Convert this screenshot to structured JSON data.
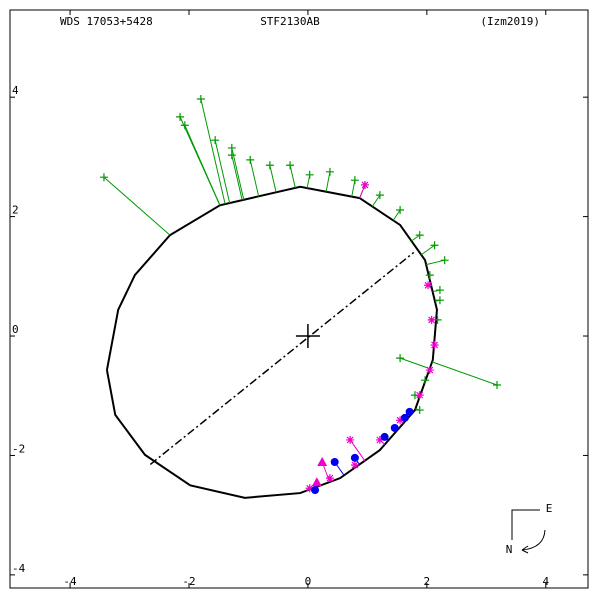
{
  "chart_data": {
    "type": "orbit",
    "title_left": "WDS 17053+5428",
    "title": "STF2130AB",
    "title_right": "(Izm2019)",
    "compass": {
      "east": "E",
      "north": "N"
    },
    "xlim": [
      -5.01,
      4.71
    ],
    "ylim": [
      -4.22,
      5.46
    ],
    "xticks": [
      -4,
      -2,
      0,
      2,
      4
    ],
    "yticks": [
      -4,
      -2,
      0,
      2,
      4
    ],
    "primary": {
      "x": 0,
      "y": 0
    },
    "orbit": {
      "color": "#000000",
      "x": [
        -3.38,
        -3.19,
        -2.91,
        -2.32,
        -1.48,
        -0.13,
        0.87,
        1.55,
        1.97,
        2.17,
        2.1,
        1.8,
        1.21,
        0.54,
        -0.13,
        -1.06,
        -1.98,
        -2.74,
        -3.24,
        -3.38
      ],
      "y": [
        -0.57,
        0.44,
        1.02,
        1.69,
        2.19,
        2.5,
        2.31,
        1.86,
        1.27,
        0.44,
        -0.4,
        -1.24,
        -1.91,
        -2.38,
        -2.63,
        -2.71,
        -2.5,
        -1.99,
        -1.32,
        -0.57
      ]
    },
    "node_line": {
      "color": "#000000",
      "x": [
        -2.65,
        1.78
      ],
      "y": [
        -2.15,
        1.4
      ]
    },
    "residuals": true,
    "series": [
      {
        "marker": "plus",
        "color": "#009900",
        "x": [
          -3.43,
          -2.15,
          -1.8,
          -2.07,
          -1.28,
          -0.97,
          -0.64,
          -0.3,
          0.03,
          0.37,
          0.79,
          0.96,
          1.21,
          1.55,
          1.88,
          2.13,
          2.3,
          2.05,
          2.22,
          2.18,
          3.18,
          1.55,
          1.97,
          1.8,
          -1.28,
          -1.56,
          2.22,
          1.88
        ],
        "y": [
          2.66,
          3.67,
          3.97,
          3.53,
          3.15,
          2.95,
          2.86,
          2.86,
          2.7,
          2.75,
          2.61,
          2.53,
          2.36,
          2.11,
          1.69,
          1.52,
          1.27,
          1.02,
          0.6,
          0.27,
          -0.82,
          -0.37,
          -0.74,
          -0.99,
          3.03,
          3.28,
          0.77,
          -1.24
        ]
      },
      {
        "marker": "star",
        "color": "#ee00cc",
        "x": [
          0.03,
          0.37,
          0.71,
          0.79,
          1.21,
          1.55,
          1.88,
          2.05,
          2.13,
          2.08,
          2.02,
          0.96
        ],
        "y": [
          -2.55,
          -2.38,
          -1.74,
          -2.16,
          -1.74,
          -1.41,
          -0.99,
          -0.57,
          -0.15,
          0.27,
          0.85,
          2.53
        ]
      },
      {
        "marker": "triangle",
        "color": "#ee00cc",
        "x": [
          0.24,
          0.15
        ],
        "y": [
          -2.11,
          -2.45
        ]
      },
      {
        "marker": "circle",
        "color": "#0000ee",
        "x": [
          0.12,
          0.45,
          0.79,
          1.29,
          1.46,
          1.63,
          1.71
        ],
        "y": [
          -2.58,
          -2.11,
          -2.04,
          -1.69,
          -1.54,
          -1.37,
          -1.27
        ]
      }
    ]
  }
}
